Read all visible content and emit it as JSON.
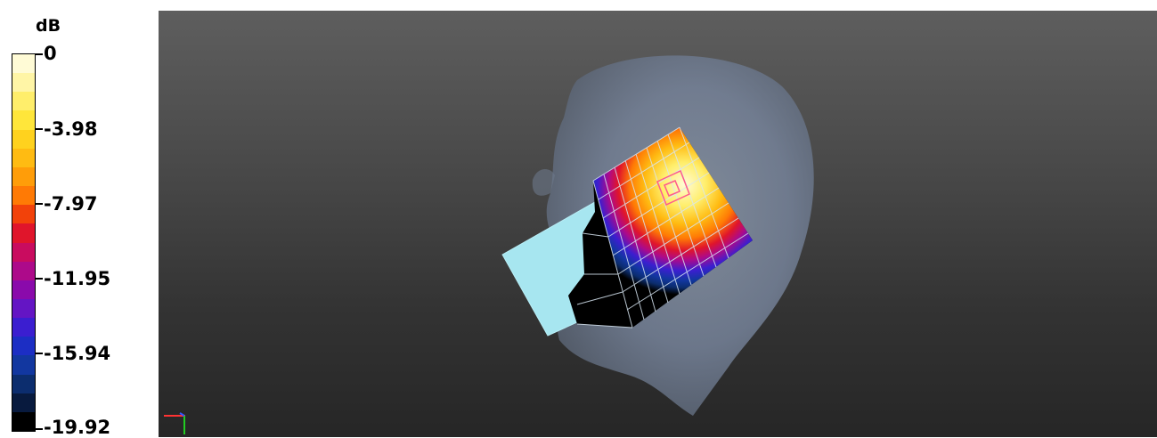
{
  "legend": {
    "unit": "dB",
    "ticks": [
      "0",
      "-3.98",
      "-7.97",
      "-11.95",
      "-15.94",
      "-19.92"
    ],
    "colors": [
      "#fffbd6",
      "#fff5a6",
      "#ffee6b",
      "#ffe63a",
      "#ffd21e",
      "#ffbb12",
      "#ff9d09",
      "#ff7a05",
      "#f2420a",
      "#e0152b",
      "#c90c5f",
      "#ad0a8a",
      "#8a0aab",
      "#6415c4",
      "#3b1ed0",
      "#1c2ec4",
      "#1237a0",
      "#0c2d6e",
      "#081a3e",
      "#000000"
    ]
  },
  "viewport": {
    "axis_colors": {
      "x": "#ff3333",
      "y": "#22cc22",
      "z": "#3355ff"
    }
  }
}
